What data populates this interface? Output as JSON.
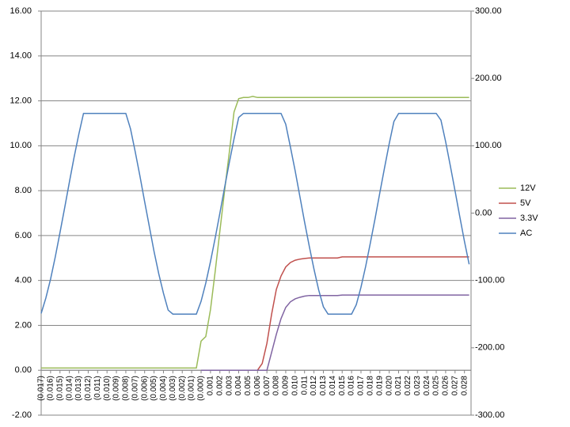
{
  "chart_data": {
    "type": "line",
    "x": [
      -0.017,
      -0.0165,
      -0.016,
      -0.0155,
      -0.015,
      -0.0145,
      -0.014,
      -0.0135,
      -0.013,
      -0.0125,
      -0.012,
      -0.0115,
      -0.011,
      -0.0105,
      -0.01,
      -0.0095,
      -0.009,
      -0.0085,
      -0.008,
      -0.0075,
      -0.007,
      -0.0065,
      -0.006,
      -0.0055,
      -0.005,
      -0.0045,
      -0.004,
      -0.0035,
      -0.003,
      -0.0025,
      -0.002,
      -0.0015,
      -0.001,
      -0.0005,
      0,
      0.0005,
      0.001,
      0.0015,
      0.002,
      0.0025,
      0.003,
      0.0035,
      0.004,
      0.0045,
      0.005,
      0.0055,
      0.006,
      0.0065,
      0.007,
      0.0075,
      0.008,
      0.0085,
      0.009,
      0.0095,
      0.01,
      0.0105,
      0.011,
      0.0115,
      0.012,
      0.0125,
      0.013,
      0.0135,
      0.014,
      0.0145,
      0.015,
      0.0155,
      0.016,
      0.0165,
      0.017,
      0.0175,
      0.018,
      0.0185,
      0.019,
      0.0195,
      0.02,
      0.0205,
      0.021,
      0.0215,
      0.022,
      0.0225,
      0.023,
      0.0235,
      0.024,
      0.0245,
      0.025,
      0.0255,
      0.026,
      0.0265,
      0.027,
      0.0275,
      0.028,
      0.0285
    ],
    "series": [
      {
        "name": "12V",
        "color": "#9bbb59",
        "values": [
          0.1,
          0.1,
          0.1,
          0.1,
          0.1,
          0.1,
          0.1,
          0.1,
          0.1,
          0.1,
          0.1,
          0.1,
          0.1,
          0.1,
          0.1,
          0.1,
          0.1,
          0.1,
          0.1,
          0.1,
          0.1,
          0.1,
          0.1,
          0.1,
          0.1,
          0.1,
          0.1,
          0.1,
          0.1,
          0.1,
          0.1,
          0.1,
          0.1,
          0.1,
          1.3,
          1.5,
          2.7,
          4.4,
          6.2,
          8.0,
          9.7,
          11.5,
          12.1,
          12.15,
          12.15,
          12.2,
          12.15,
          12.15,
          12.15,
          12.15,
          12.15,
          12.15,
          12.15,
          12.15,
          12.15,
          12.15,
          12.15,
          12.15,
          12.15,
          12.15,
          12.15,
          12.15,
          12.15,
          12.15,
          12.15,
          12.15,
          12.15,
          12.15,
          12.15,
          12.15,
          12.15,
          12.15,
          12.15,
          12.15,
          12.15,
          12.15,
          12.15,
          12.15,
          12.15,
          12.15,
          12.15,
          12.15,
          12.15,
          12.15,
          12.15,
          12.15,
          12.15,
          12.15,
          12.15,
          12.15,
          12.15,
          12.15
        ]
      },
      {
        "name": "5V",
        "color": "#c0504d",
        "values": [
          null,
          null,
          null,
          null,
          null,
          null,
          null,
          null,
          null,
          null,
          null,
          null,
          null,
          null,
          null,
          null,
          null,
          null,
          null,
          null,
          null,
          null,
          null,
          null,
          null,
          null,
          null,
          null,
          null,
          null,
          null,
          null,
          null,
          null,
          0,
          0,
          0,
          0,
          0,
          0,
          0,
          0,
          0,
          0,
          0,
          0,
          0,
          0.3,
          1.2,
          2.5,
          3.6,
          4.2,
          4.6,
          4.8,
          4.9,
          4.95,
          4.98,
          5.0,
          5.0,
          5.0,
          5.0,
          5.0,
          5.0,
          5.0,
          5.05,
          5.05,
          5.05,
          5.05,
          5.05,
          5.05,
          5.05,
          5.05,
          5.05,
          5.05,
          5.05,
          5.05,
          5.05,
          5.05,
          5.05,
          5.05,
          5.05,
          5.05,
          5.05,
          5.05,
          5.05,
          5.05,
          5.05,
          5.05,
          5.05,
          5.05,
          5.05,
          5.05
        ]
      },
      {
        "name": "3.3V",
        "color": "#8064a2",
        "values": [
          null,
          null,
          null,
          null,
          null,
          null,
          null,
          null,
          null,
          null,
          null,
          null,
          null,
          null,
          null,
          null,
          null,
          null,
          null,
          null,
          null,
          null,
          null,
          null,
          null,
          null,
          null,
          null,
          null,
          null,
          null,
          null,
          null,
          null,
          0,
          0,
          0,
          0,
          0,
          0,
          0,
          0,
          0,
          0,
          0,
          0,
          0,
          0,
          0,
          0.8,
          1.6,
          2.3,
          2.8,
          3.05,
          3.18,
          3.25,
          3.3,
          3.33,
          3.33,
          3.33,
          3.33,
          3.33,
          3.33,
          3.33,
          3.35,
          3.35,
          3.35,
          3.35,
          3.35,
          3.35,
          3.35,
          3.35,
          3.35,
          3.35,
          3.35,
          3.35,
          3.35,
          3.35,
          3.35,
          3.35,
          3.35,
          3.35,
          3.35,
          3.35,
          3.35,
          3.35,
          3.35,
          3.35,
          3.35,
          3.35,
          3.35,
          3.35
        ]
      },
      {
        "name": "AC",
        "color": "#4f81bd",
        "axis": "y2",
        "values": [
          -149,
          -126,
          -98,
          -65,
          -29,
          8,
          46,
          83,
          117,
          148,
          148,
          148,
          148,
          148,
          148,
          148,
          148,
          148,
          148,
          125,
          91,
          55,
          17,
          -20,
          -57,
          -90,
          -119,
          -144,
          -150,
          -150,
          -150,
          -150,
          -150,
          -150,
          -131,
          -104,
          -72,
          -37,
          0,
          38,
          75,
          110,
          142,
          148,
          148,
          148,
          148,
          148,
          148,
          148,
          148,
          148,
          132,
          98,
          63,
          25,
          -13,
          -49,
          -83,
          -114,
          -139,
          -150,
          -150,
          -150,
          -150,
          -150,
          -150,
          -136,
          -110,
          -79,
          -44,
          -8,
          30,
          67,
          103,
          136,
          148,
          148,
          148,
          148,
          148,
          148,
          148,
          148,
          148,
          138,
          106,
          70,
          33,
          -5,
          -42,
          -76
        ]
      }
    ],
    "xlim": [
      -0.017,
      0.0287
    ],
    "xticks": [
      {
        "value": -0.017,
        "label": "(0.017)"
      },
      {
        "value": -0.016,
        "label": "(0.016)"
      },
      {
        "value": -0.015,
        "label": "(0.015)"
      },
      {
        "value": -0.014,
        "label": "(0.014)"
      },
      {
        "value": -0.013,
        "label": "(0.013)"
      },
      {
        "value": -0.012,
        "label": "(0.012)"
      },
      {
        "value": -0.011,
        "label": "(0.011)"
      },
      {
        "value": -0.01,
        "label": "(0.010)"
      },
      {
        "value": -0.009,
        "label": "(0.009)"
      },
      {
        "value": -0.008,
        "label": "(0.008)"
      },
      {
        "value": -0.007,
        "label": "(0.007)"
      },
      {
        "value": -0.006,
        "label": "(0.006)"
      },
      {
        "value": -0.005,
        "label": "(0.005)"
      },
      {
        "value": -0.004,
        "label": "(0.004)"
      },
      {
        "value": -0.003,
        "label": "(0.003)"
      },
      {
        "value": -0.002,
        "label": "(0.002)"
      },
      {
        "value": -0.001,
        "label": "(0.001)"
      },
      {
        "value": 0,
        "label": "(0.000)"
      },
      {
        "value": 0.001,
        "label": "0.001"
      },
      {
        "value": 0.002,
        "label": "0.002"
      },
      {
        "value": 0.003,
        "label": "0.003"
      },
      {
        "value": 0.004,
        "label": "0.004"
      },
      {
        "value": 0.005,
        "label": "0.005"
      },
      {
        "value": 0.006,
        "label": "0.006"
      },
      {
        "value": 0.007,
        "label": "0.007"
      },
      {
        "value": 0.008,
        "label": "0.008"
      },
      {
        "value": 0.009,
        "label": "0.009"
      },
      {
        "value": 0.01,
        "label": "0.010"
      },
      {
        "value": 0.011,
        "label": "0.011"
      },
      {
        "value": 0.012,
        "label": "0.012"
      },
      {
        "value": 0.013,
        "label": "0.013"
      },
      {
        "value": 0.014,
        "label": "0.014"
      },
      {
        "value": 0.015,
        "label": "0.015"
      },
      {
        "value": 0.016,
        "label": "0.016"
      },
      {
        "value": 0.017,
        "label": "0.017"
      },
      {
        "value": 0.018,
        "label": "0.018"
      },
      {
        "value": 0.019,
        "label": "0.019"
      },
      {
        "value": 0.02,
        "label": "0.020"
      },
      {
        "value": 0.021,
        "label": "0.021"
      },
      {
        "value": 0.022,
        "label": "0.022"
      },
      {
        "value": 0.023,
        "label": "0.023"
      },
      {
        "value": 0.024,
        "label": "0.024"
      },
      {
        "value": 0.025,
        "label": "0.025"
      },
      {
        "value": 0.026,
        "label": "0.026"
      },
      {
        "value": 0.027,
        "label": "0.027"
      },
      {
        "value": 0.028,
        "label": "0.028"
      }
    ],
    "ylim": [
      -2,
      16
    ],
    "yticks": [
      {
        "value": -2,
        "label": "-2.00"
      },
      {
        "value": 0,
        "label": "0.00"
      },
      {
        "value": 2,
        "label": "2.00"
      },
      {
        "value": 4,
        "label": "4.00"
      },
      {
        "value": 6,
        "label": "6.00"
      },
      {
        "value": 8,
        "label": "8.00"
      },
      {
        "value": 10,
        "label": "10.00"
      },
      {
        "value": 12,
        "label": "12.00"
      },
      {
        "value": 14,
        "label": "14.00"
      },
      {
        "value": 16,
        "label": "16.00"
      }
    ],
    "y2lim": [
      -300,
      300
    ],
    "y2ticks": [
      {
        "value": -300,
        "label": "-300.00"
      },
      {
        "value": -200,
        "label": "-200.00"
      },
      {
        "value": -100,
        "label": "-100.00"
      },
      {
        "value": 0,
        "label": "0.00"
      },
      {
        "value": 100,
        "label": "100.00"
      },
      {
        "value": 200,
        "label": "200.00"
      },
      {
        "value": 300,
        "label": "300.00"
      }
    ],
    "grid": true,
    "legend": "right"
  }
}
